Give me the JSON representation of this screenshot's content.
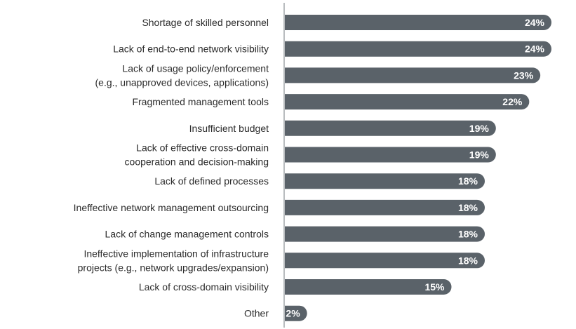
{
  "chart_data": {
    "type": "bar",
    "orientation": "horizontal",
    "categories": [
      [
        "Shortage of skilled personnel"
      ],
      [
        "Lack of end-to-end network visibility"
      ],
      [
        "Lack of usage policy/enforcement",
        "(e.g., unapproved devices, applications)"
      ],
      [
        "Fragmented management tools"
      ],
      [
        "Insufficient budget"
      ],
      [
        "Lack of effective cross-domain",
        "cooperation and decision-making"
      ],
      [
        "Lack of defined processes"
      ],
      [
        "Ineffective network management outsourcing"
      ],
      [
        "Lack of change management controls"
      ],
      [
        "Ineffective implementation of infrastructure",
        "projects (e.g., network upgrades/expansion)"
      ],
      [
        "Lack of cross-domain visibility"
      ],
      [
        "Other"
      ]
    ],
    "values": [
      24,
      24,
      23,
      22,
      19,
      19,
      18,
      18,
      18,
      18,
      15,
      2
    ],
    "value_labels": [
      "24%",
      "24%",
      "23%",
      "22%",
      "19%",
      "19%",
      "18%",
      "18%",
      "18%",
      "18%",
      "15%",
      "2%"
    ],
    "unit": "%",
    "xlim": [
      0,
      24
    ],
    "grid": false,
    "legend": "none",
    "bar_color": "#5a6269",
    "axis_color": "#8a8f94"
  }
}
